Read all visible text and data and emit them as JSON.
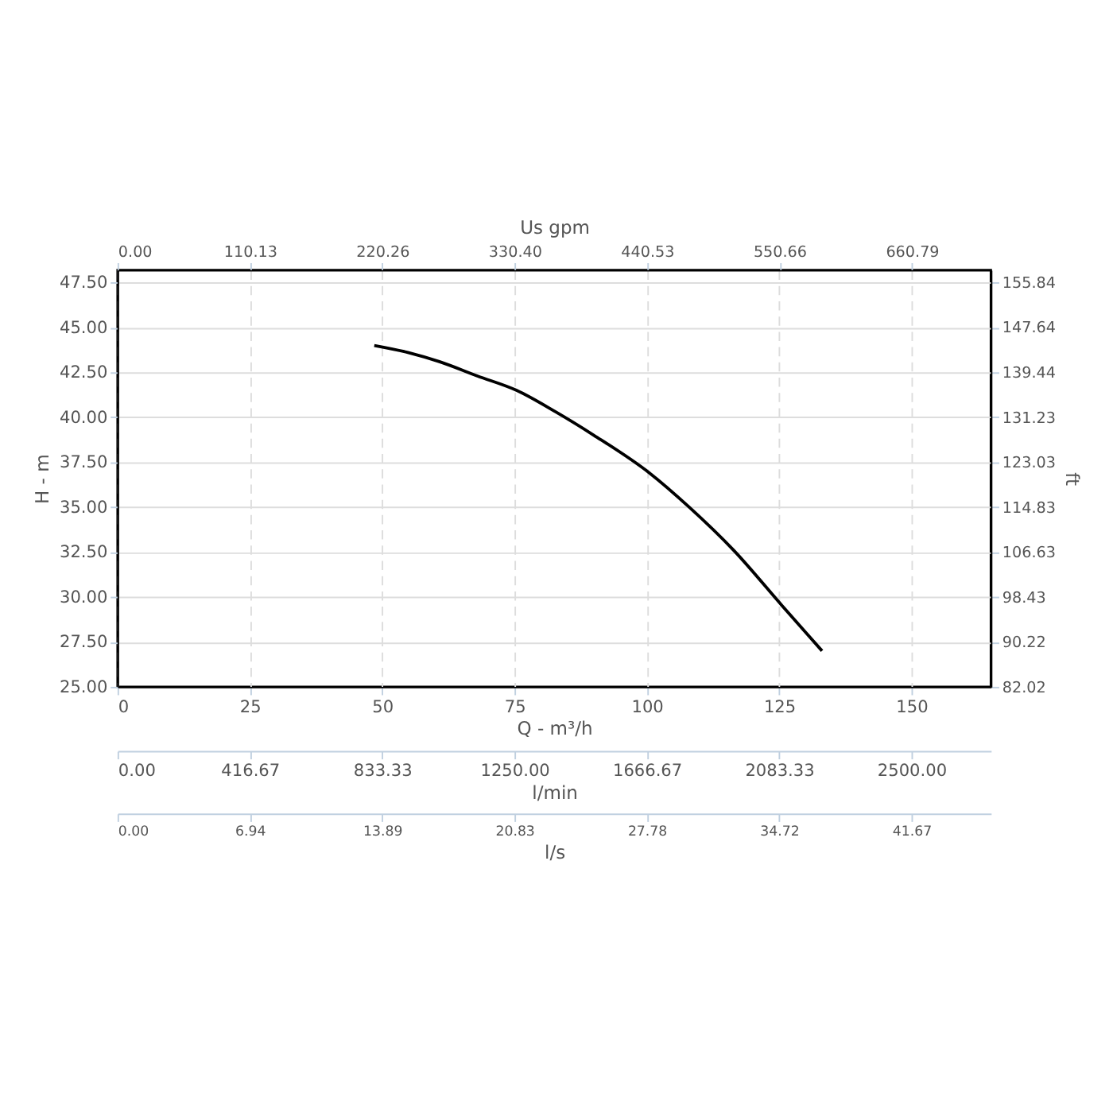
{
  "chart_data": [
    {
      "type": "line",
      "xlabel": "Q - m³/h",
      "ylabel": "H - m",
      "y2label": "ft",
      "x2label": "Us gpm",
      "x": [
        48.5,
        55,
        60.8,
        68,
        75.4,
        82.8,
        90,
        100.5,
        108,
        116.4,
        125.6,
        133.1
      ],
      "series": [
        {
          "color": "#000000",
          "values": [
            44.0,
            43.6,
            43.1,
            42.3,
            41.5,
            40.3,
            39.0,
            36.9,
            35.0,
            32.6,
            29.5,
            27.0
          ]
        }
      ],
      "xlim": [
        0,
        165
      ],
      "xticks": [
        0,
        25,
        50,
        75,
        100,
        125,
        150
      ],
      "ylim": [
        25,
        48.2
      ],
      "yticks": [
        {
          "value": 25,
          "label": "25.00"
        },
        {
          "value": 27.5,
          "label": "27.50"
        },
        {
          "value": 30,
          "label": "30.00"
        },
        {
          "value": 32.5,
          "label": "32.50"
        },
        {
          "value": 35,
          "label": "35.00"
        },
        {
          "value": 37.5,
          "label": "37.50"
        },
        {
          "value": 40,
          "label": "40.00"
        },
        {
          "value": 42.5,
          "label": "42.50"
        },
        {
          "value": 45,
          "label": "45.00"
        },
        {
          "value": 47.5,
          "label": "47.50"
        }
      ],
      "y2lim": [
        82.02,
        158.1
      ],
      "y2ticks": [
        82.02,
        90.22,
        98.43,
        106.63,
        114.83,
        123.03,
        131.23,
        139.44,
        147.64,
        155.84
      ],
      "x2lim": [
        0,
        726.5
      ],
      "x2ticks": [
        {
          "value": 0,
          "label": "0.00"
        },
        110.13,
        220.26,
        {
          "value": 330.4,
          "label": "330.40"
        },
        440.53,
        550.66,
        660.79
      ],
      "grid": true,
      "marker": "none",
      "line_style": "solid"
    },
    {
      "type": "other",
      "xlabel": "l/min",
      "annotations": [
        "0.00",
        "416.67",
        "833.33",
        "1250.00",
        "1666.67",
        "2083.33",
        "2500.00"
      ]
    },
    {
      "type": "other",
      "xlabel": "l/s",
      "annotations": [
        "0.00",
        "6.94",
        "13.89",
        "20.83",
        "27.78",
        "34.72",
        "41.67"
      ]
    }
  ]
}
